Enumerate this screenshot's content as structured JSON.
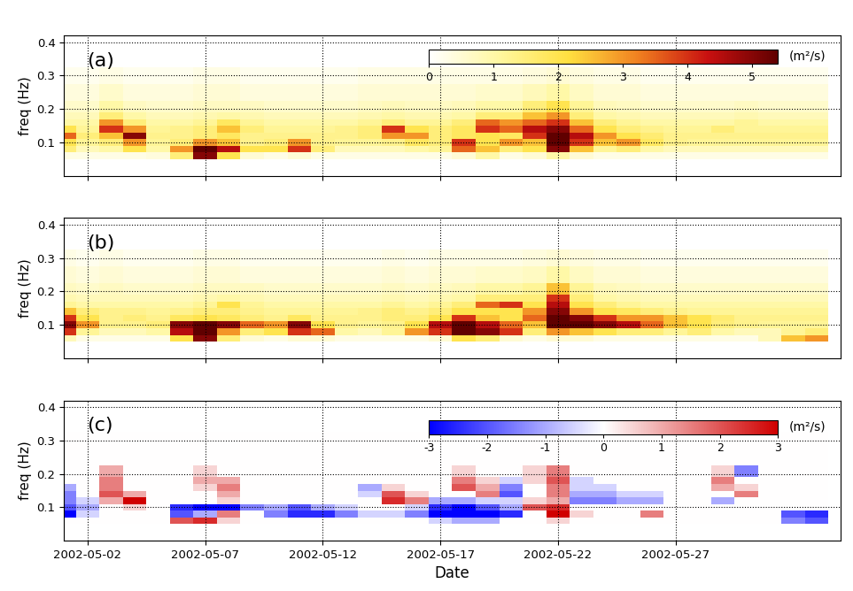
{
  "chart_data": [
    {
      "type": "heatmap",
      "title": "(a)",
      "ylabel": "freq (Hz)",
      "tick_labels": "y",
      "grid": true,
      "x": [
        "2002-05-01",
        "2002-05-02",
        "2002-05-03",
        "2002-05-04",
        "2002-05-05",
        "2002-05-06",
        "2002-05-07",
        "2002-05-08",
        "2002-05-09",
        "2002-05-10",
        "2002-05-11",
        "2002-05-12",
        "2002-05-13",
        "2002-05-14",
        "2002-05-15",
        "2002-05-16",
        "2002-05-17",
        "2002-05-18",
        "2002-05-19",
        "2002-05-20",
        "2002-05-21",
        "2002-05-22",
        "2002-05-23",
        "2002-05-24",
        "2002-05-25",
        "2002-05-26",
        "2002-05-27",
        "2002-05-28",
        "2002-05-29",
        "2002-05-30",
        "2002-05-31",
        "2002-06-01",
        "2002-06-02"
      ],
      "y": [
        0.06,
        0.08,
        0.1,
        0.12,
        0.14,
        0.16,
        0.18,
        0.2,
        0.25,
        0.3
      ],
      "cells": [
        [
          0.3,
          0.3,
          0.3,
          0.3,
          0.4,
          1.5,
          5,
          2,
          0.5,
          0.3,
          0.5,
          0.3,
          0.3,
          0.3,
          0.3,
          0.3,
          0.3,
          0.5,
          1.0,
          0.3,
          0.5,
          1.0,
          0.5,
          0.3,
          0.3,
          0.3,
          0.3,
          0.3,
          0.3,
          0.3,
          0.3,
          0.3,
          0.3
        ],
        [
          1.5,
          0.8,
          1.0,
          2,
          1.0,
          3,
          5.5,
          4.5,
          2,
          2,
          4,
          1.5,
          0.8,
          0.8,
          0.8,
          1.0,
          1.2,
          3.5,
          2.5,
          1.5,
          2,
          5,
          2.5,
          1.2,
          1.5,
          1.0,
          0.8,
          0.8,
          0.8,
          0.8,
          0.8,
          0.8,
          0.8
        ],
        [
          2,
          1.2,
          1.5,
          3,
          1.2,
          1.5,
          3,
          2.5,
          1.3,
          1.5,
          3,
          1.3,
          1.2,
          1.2,
          1.3,
          1.8,
          1.5,
          4,
          2,
          3,
          2.5,
          5.5,
          4,
          2.5,
          3,
          1.8,
          1.3,
          1.2,
          1.2,
          1.2,
          1.2,
          1.2,
          1.2
        ],
        [
          3.5,
          1.5,
          2.5,
          5,
          1.3,
          1.3,
          1.5,
          1.8,
          1.3,
          1.3,
          1.3,
          1.3,
          1.3,
          1.5,
          3,
          3,
          1.5,
          1.8,
          2,
          1.8,
          4,
          5.5,
          4.5,
          3,
          2,
          1.6,
          1.3,
          1.3,
          1.3,
          1.3,
          1.3,
          1.3,
          1.3
        ],
        [
          2,
          1.2,
          4,
          3,
          1.2,
          1.3,
          1.5,
          2.5,
          1.5,
          1.2,
          1.2,
          1.2,
          1.3,
          1.5,
          4,
          2,
          1.5,
          1.8,
          4,
          3.5,
          4.5,
          5,
          3.5,
          2,
          1.5,
          1.3,
          1.2,
          1.2,
          1.5,
          1.2,
          1.2,
          1.2,
          1.2
        ],
        [
          1.0,
          1.0,
          3,
          1.5,
          1.0,
          1.0,
          1.2,
          1.8,
          1.2,
          1.0,
          1.0,
          1.0,
          1.0,
          1.2,
          1.5,
          1.2,
          1.2,
          1.5,
          3.5,
          3,
          3.5,
          4,
          2.5,
          1.5,
          1.2,
          1.0,
          1.0,
          1.0,
          1.0,
          1.2,
          1.0,
          1.0,
          1.0
        ],
        [
          0.8,
          0.8,
          1.5,
          1.0,
          0.8,
          0.8,
          0.9,
          1.0,
          0.9,
          0.8,
          0.8,
          0.8,
          0.8,
          0.9,
          1.0,
          0.9,
          0.9,
          1.0,
          1.5,
          1.5,
          2.5,
          3,
          1.5,
          1.0,
          0.9,
          0.8,
          0.8,
          0.8,
          0.8,
          0.9,
          0.8,
          0.8,
          0.8
        ],
        [
          0.6,
          0.6,
          1.0,
          0.7,
          0.6,
          0.6,
          0.7,
          0.7,
          0.7,
          0.6,
          0.6,
          0.6,
          0.6,
          0.7,
          0.8,
          0.7,
          0.7,
          0.8,
          1.0,
          1.0,
          1.5,
          2,
          1.2,
          0.8,
          0.7,
          0.6,
          0.6,
          0.6,
          0.6,
          0.7,
          0.6,
          0.6,
          0.6
        ],
        [
          0.4,
          0.4,
          0.6,
          0.4,
          0.4,
          0.4,
          0.5,
          0.5,
          0.4,
          0.4,
          0.4,
          0.4,
          0.4,
          0.5,
          0.5,
          0.5,
          0.5,
          0.5,
          0.6,
          0.6,
          0.8,
          1.0,
          0.7,
          0.5,
          0.5,
          0.4,
          0.4,
          0.4,
          0.4,
          0.4,
          0.4,
          0.4,
          0.4
        ],
        [
          0.2,
          0.2,
          0.3,
          0.2,
          0.2,
          0.2,
          0.3,
          0.3,
          0.2,
          0.2,
          0.2,
          0.2,
          0.2,
          0.3,
          0.3,
          0.3,
          0.3,
          0.3,
          0.3,
          0.3,
          0.4,
          0.5,
          0.4,
          0.3,
          0.3,
          0.2,
          0.2,
          0.2,
          0.2,
          0.2,
          0.2,
          0.2,
          0.2
        ]
      ],
      "xlim": [
        "2002-05-01",
        "2002-06-03"
      ],
      "xticks": [
        "2002-05-02",
        "2002-05-07",
        "2002-05-12",
        "2002-05-17",
        "2002-05-22",
        "2002-05-27"
      ],
      "ylim": [
        0,
        0.42
      ],
      "yticks": [
        0.1,
        0.2,
        0.3,
        0.4
      ],
      "colors": [
        "#ffffff",
        "#fff7a0",
        "#ffe040",
        "#f08020",
        "#c81010",
        "#600000"
      ],
      "crange": [
        0,
        5.4
      ],
      "cticks": [
        0,
        1,
        2,
        3,
        4,
        5
      ],
      "clabel": "(m²/s)"
    },
    {
      "type": "heatmap",
      "title": "(b)",
      "ylabel": "freq (Hz)",
      "tick_labels": "y",
      "grid": true,
      "x": [
        "2002-05-01",
        "2002-05-02",
        "2002-05-03",
        "2002-05-04",
        "2002-05-05",
        "2002-05-06",
        "2002-05-07",
        "2002-05-08",
        "2002-05-09",
        "2002-05-10",
        "2002-05-11",
        "2002-05-12",
        "2002-05-13",
        "2002-05-14",
        "2002-05-15",
        "2002-05-16",
        "2002-05-17",
        "2002-05-18",
        "2002-05-19",
        "2002-05-20",
        "2002-05-21",
        "2002-05-22",
        "2002-05-23",
        "2002-05-24",
        "2002-05-25",
        "2002-05-26",
        "2002-05-27",
        "2002-05-28",
        "2002-05-29",
        "2002-05-30",
        "2002-05-31",
        "2002-06-01",
        "2002-06-02"
      ],
      "y": [
        0.06,
        0.08,
        0.1,
        0.12,
        0.14,
        0.16,
        0.18,
        0.2,
        0.25,
        0.3
      ],
      "cells": [
        [
          0.8,
          0.3,
          0.3,
          0.3,
          0.3,
          2,
          5,
          1.5,
          0.5,
          0.3,
          0.5,
          0.5,
          0.3,
          0.3,
          0.3,
          0.3,
          0.5,
          2,
          1.5,
          0.5,
          0.3,
          0.5,
          0.5,
          0.3,
          0.3,
          0.3,
          0.3,
          0.3,
          0.3,
          0.3,
          0.8,
          2.5,
          3
        ],
        [
          4,
          1.2,
          0.8,
          0.8,
          1.0,
          4.5,
          5.5,
          3,
          1.5,
          2,
          4,
          3.5,
          1.0,
          0.8,
          1.2,
          3,
          4,
          5.5,
          5,
          4,
          1.5,
          3,
          2.5,
          2,
          1.5,
          1.5,
          1.2,
          1.5,
          1.0,
          0.8,
          0.8,
          1.2,
          1.5
        ],
        [
          5,
          3,
          1.3,
          1.3,
          1.5,
          5,
          5.5,
          5,
          3.5,
          3,
          5,
          2,
          1.3,
          1.2,
          1.3,
          2,
          4.5,
          5.5,
          4.5,
          3.5,
          2.5,
          5.5,
          5.5,
          5,
          4.5,
          3.5,
          2.5,
          2,
          1.5,
          1.3,
          1.2,
          1.2,
          1.2
        ],
        [
          4,
          2,
          1.3,
          1.5,
          1.3,
          1.8,
          2,
          1.8,
          1.5,
          1.3,
          1.8,
          1.3,
          1.3,
          1.3,
          1.5,
          1.5,
          2,
          4,
          2.5,
          2,
          3.5,
          5.5,
          5,
          4,
          3,
          3,
          2.5,
          2,
          1.6,
          1.3,
          1.3,
          1.3,
          1.3
        ],
        [
          2.5,
          1.5,
          1.3,
          1.3,
          1.2,
          1.3,
          1.5,
          1.5,
          1.3,
          1.2,
          1.2,
          1.2,
          1.2,
          1.3,
          1.5,
          1.3,
          1.5,
          2,
          2,
          2,
          3,
          5,
          3,
          2,
          1.8,
          1.5,
          1.3,
          1.2,
          1.2,
          1.2,
          1.2,
          1.2,
          1.2
        ],
        [
          1.2,
          1.0,
          1.0,
          1.0,
          1.0,
          1.0,
          1.2,
          2,
          1.2,
          1.0,
          1.0,
          1.0,
          1.0,
          1.0,
          1.2,
          1.0,
          1.2,
          1.5,
          3.5,
          4,
          2,
          4.5,
          2,
          1.5,
          1.2,
          1.0,
          1.0,
          1.0,
          1.0,
          1.0,
          1.0,
          1.0,
          1.0
        ],
        [
          0.9,
          0.8,
          0.8,
          0.8,
          0.8,
          0.8,
          0.9,
          1.0,
          0.9,
          0.8,
          0.8,
          0.8,
          0.8,
          0.8,
          0.9,
          0.8,
          0.9,
          1.0,
          1.5,
          1.5,
          1.5,
          4,
          1.5,
          1.0,
          0.9,
          0.8,
          0.8,
          0.8,
          0.8,
          0.8,
          0.8,
          0.8,
          0.8
        ],
        [
          0.7,
          0.6,
          0.7,
          0.6,
          0.6,
          0.6,
          0.7,
          0.7,
          0.7,
          0.6,
          0.6,
          0.6,
          0.6,
          0.6,
          0.7,
          0.6,
          0.7,
          0.8,
          1.0,
          1.0,
          1.2,
          2.5,
          1.2,
          0.8,
          0.7,
          0.6,
          0.6,
          0.6,
          0.6,
          0.6,
          0.6,
          0.6,
          0.6
        ],
        [
          0.5,
          0.4,
          0.5,
          0.4,
          0.4,
          0.4,
          0.5,
          0.5,
          0.4,
          0.4,
          0.4,
          0.4,
          0.4,
          0.4,
          0.5,
          0.4,
          0.5,
          0.5,
          0.6,
          0.6,
          0.7,
          1.0,
          0.7,
          0.5,
          0.5,
          0.4,
          0.4,
          0.4,
          0.4,
          0.4,
          0.4,
          0.4,
          0.4
        ],
        [
          0.3,
          0.2,
          0.3,
          0.2,
          0.2,
          0.2,
          0.3,
          0.3,
          0.2,
          0.2,
          0.2,
          0.2,
          0.2,
          0.2,
          0.3,
          0.2,
          0.3,
          0.3,
          0.3,
          0.3,
          0.4,
          0.5,
          0.4,
          0.3,
          0.3,
          0.2,
          0.2,
          0.2,
          0.2,
          0.2,
          0.2,
          0.2,
          0.2
        ]
      ],
      "xlim": [
        "2002-05-01",
        "2002-06-03"
      ],
      "xticks": [
        "2002-05-02",
        "2002-05-07",
        "2002-05-12",
        "2002-05-17",
        "2002-05-22",
        "2002-05-27"
      ],
      "ylim": [
        0,
        0.42
      ],
      "yticks": [
        0.1,
        0.2,
        0.3,
        0.4
      ],
      "colors": [
        "#ffffff",
        "#fff7a0",
        "#ffe040",
        "#f08020",
        "#c81010",
        "#600000"
      ],
      "crange": [
        0,
        5.4
      ]
    },
    {
      "type": "heatmap",
      "title": "(c)",
      "ylabel": "freq (Hz)",
      "xlabel": "Date",
      "grid": true,
      "x": [
        "2002-05-01",
        "2002-05-02",
        "2002-05-03",
        "2002-05-04",
        "2002-05-05",
        "2002-05-06",
        "2002-05-07",
        "2002-05-08",
        "2002-05-09",
        "2002-05-10",
        "2002-05-11",
        "2002-05-12",
        "2002-05-13",
        "2002-05-14",
        "2002-05-15",
        "2002-05-16",
        "2002-05-17",
        "2002-05-18",
        "2002-05-19",
        "2002-05-20",
        "2002-05-21",
        "2002-05-22",
        "2002-05-23",
        "2002-05-24",
        "2002-05-25",
        "2002-05-26",
        "2002-05-27",
        "2002-05-28",
        "2002-05-29",
        "2002-05-30",
        "2002-05-31",
        "2002-06-01",
        "2002-06-02"
      ],
      "y": [
        0.06,
        0.08,
        0.1,
        0.12,
        0.14,
        0.16,
        0.18,
        0.2,
        0.25,
        0.3
      ],
      "cells": [
        [
          0,
          0,
          0,
          0,
          0,
          2,
          2.5,
          0.5,
          0,
          0,
          0,
          0,
          0,
          0,
          0,
          0,
          -0.5,
          -1,
          -1,
          0,
          0,
          0.5,
          0,
          0,
          0,
          0,
          0,
          0,
          0,
          0,
          0,
          -1.5,
          -2
        ],
        [
          -3,
          -0.5,
          0,
          0,
          0,
          -2,
          -1,
          1.5,
          0,
          -1.5,
          -2.5,
          -2.5,
          -1.5,
          -0.5,
          -0.5,
          -1.5,
          -3,
          -3,
          -3,
          -2.5,
          0,
          3,
          0.5,
          0,
          0,
          1.5,
          0,
          0,
          0,
          0,
          0,
          -2,
          -2.5
        ],
        [
          -2,
          -1,
          0,
          0.5,
          0,
          -2.5,
          -3,
          -3,
          -1.5,
          -1,
          -2,
          -1,
          -0.5,
          0,
          0,
          -0.5,
          -2.5,
          -3,
          -2,
          -1,
          2,
          2.5,
          0,
          0,
          0,
          0,
          0,
          0,
          0,
          0,
          0,
          0,
          0
        ],
        [
          -1.5,
          -0.5,
          1,
          3,
          0,
          0,
          0,
          0.5,
          0,
          0,
          0,
          0,
          0,
          0,
          2.5,
          1.5,
          -1,
          -1,
          -0.5,
          -0.5,
          0.5,
          1,
          -1.5,
          -1.5,
          -1,
          -1,
          0,
          0,
          -1,
          0,
          0,
          0,
          0
        ],
        [
          -1.5,
          0,
          2,
          1,
          0,
          0,
          0,
          1,
          0,
          0,
          0,
          0,
          0,
          -0.5,
          2,
          0.5,
          0,
          0,
          1.5,
          -2,
          0,
          1.5,
          -1,
          -1,
          -0.5,
          -0.5,
          0,
          0,
          0,
          1.5,
          0,
          0,
          0
        ],
        [
          -1,
          0,
          1.5,
          0,
          0,
          0,
          0.5,
          1.5,
          0,
          0,
          0,
          0,
          0,
          -1,
          0.5,
          0,
          0,
          2,
          1,
          -1.5,
          0,
          1.5,
          -0.5,
          -0.5,
          0,
          0,
          0,
          0,
          1,
          0.5,
          0,
          0,
          0
        ],
        [
          0,
          0,
          1.5,
          0,
          0,
          0,
          1,
          1,
          0,
          0,
          0,
          0,
          0,
          0,
          0,
          0,
          0,
          1.5,
          0.5,
          -0.5,
          0.5,
          2,
          -0.5,
          0,
          0,
          0,
          0,
          0,
          1.5,
          0,
          0,
          0,
          0
        ],
        [
          0,
          0,
          1,
          0,
          0,
          0,
          0.5,
          0,
          0,
          0,
          0,
          0,
          0,
          0,
          0,
          0,
          0,
          0.5,
          0,
          0,
          0.5,
          1.5,
          0,
          0,
          0,
          0,
          0,
          0,
          0.5,
          -1.5,
          0,
          0,
          0
        ],
        [
          0,
          0,
          0,
          0,
          0,
          0,
          0,
          0,
          0,
          0,
          0,
          0,
          0,
          0,
          0,
          0,
          0,
          0,
          0,
          0,
          0,
          0,
          0,
          0,
          0,
          0,
          0,
          0,
          0,
          0,
          0,
          0,
          0
        ],
        [
          0,
          0,
          0,
          0,
          0,
          0,
          0,
          0,
          0,
          0,
          0,
          0,
          0,
          0,
          0,
          0,
          0,
          0,
          0,
          0,
          0,
          0,
          0,
          0,
          0,
          0,
          0,
          0,
          0,
          0,
          0,
          0,
          0
        ]
      ],
      "xlim": [
        "2002-05-01",
        "2002-06-03"
      ],
      "xticks": [
        "2002-05-02",
        "2002-05-07",
        "2002-05-12",
        "2002-05-17",
        "2002-05-22",
        "2002-05-27"
      ],
      "ylim": [
        0,
        0.42
      ],
      "yticks": [
        0.1,
        0.2,
        0.3,
        0.4
      ],
      "colors": [
        "#0000ff",
        "#ffffff",
        "#d00000"
      ],
      "crange": [
        -3,
        3
      ],
      "cticks": [
        -3,
        -2,
        -1,
        0,
        1,
        2,
        3
      ],
      "clabel": "(m²/s)"
    }
  ]
}
